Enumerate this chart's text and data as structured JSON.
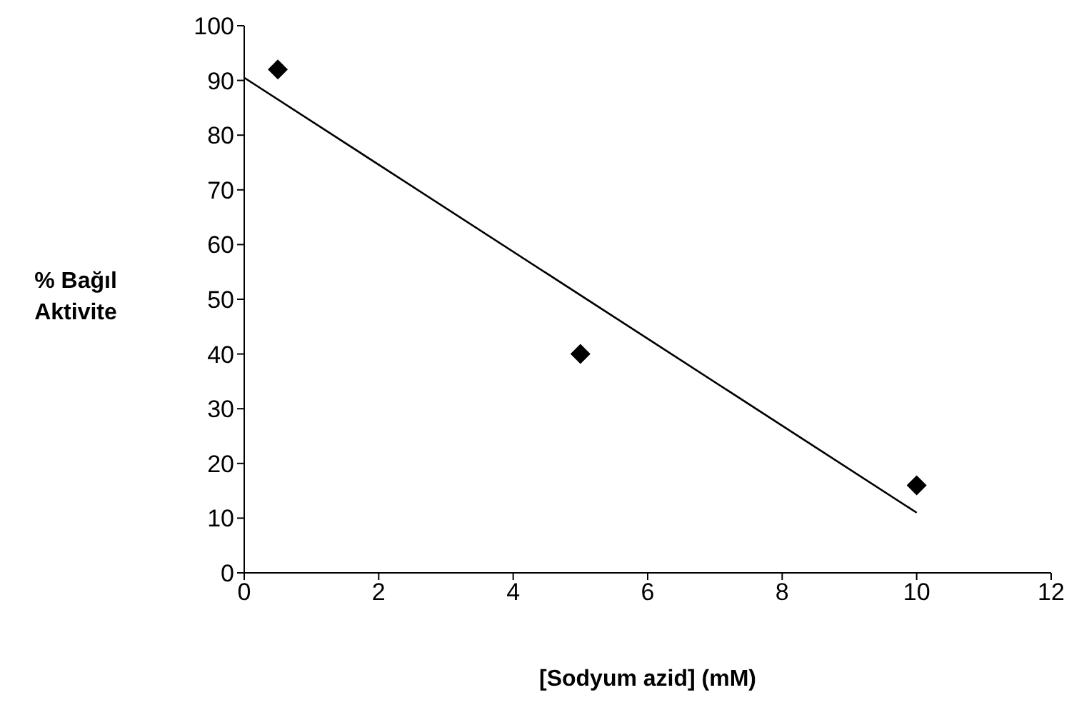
{
  "chart_data": {
    "type": "scatter",
    "xlabel": "[Sodyum azid] (mM)",
    "ylabel": "% Bağıl Aktivite",
    "marker": "diamond",
    "grid": false,
    "xlim": [
      0,
      12
    ],
    "xticks": [
      0,
      2,
      4,
      6,
      8,
      10,
      12
    ],
    "ylim": [
      0,
      100
    ],
    "yticks": [
      0,
      10,
      20,
      30,
      40,
      50,
      60,
      70,
      80,
      90,
      100
    ],
    "series": [
      {
        "color": "#000000",
        "x": [
          0.5,
          5,
          10
        ],
        "values": [
          92,
          40,
          16
        ]
      },
      {
        "type": "line",
        "color": "#000000",
        "x": [
          0,
          10
        ],
        "values": [
          90.5,
          11
        ],
        "marker": "none"
      }
    ]
  }
}
